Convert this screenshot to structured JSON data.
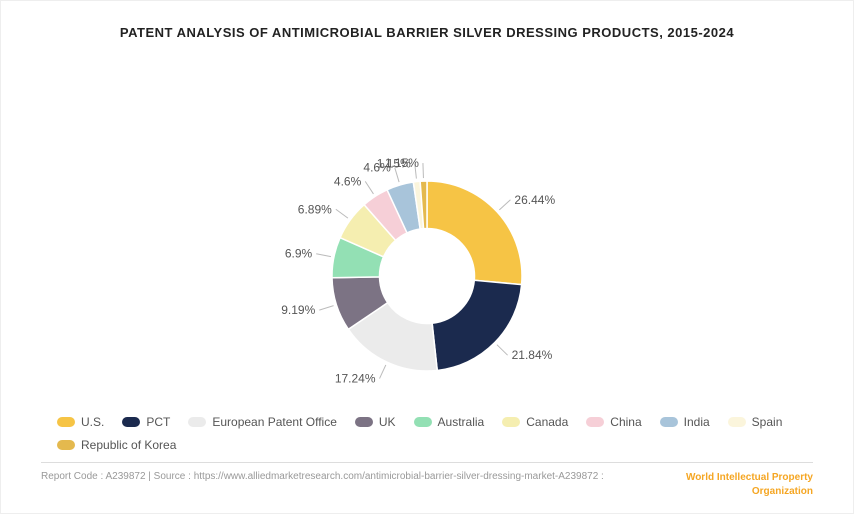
{
  "title": "PATENT ANALYSIS OF ANTIMICROBIAL BARRIER SILVER DRESSING PRODUCTS, 2015-2024",
  "title_fontsize": 13,
  "chart": {
    "type": "donut",
    "inner_radius_ratio": 0.5,
    "background_color": "#ffffff",
    "label_fontsize": 12,
    "label_color": "#555555",
    "start_angle_deg": 0,
    "slices": [
      {
        "name": "U.S.",
        "value": 26.44,
        "label": "26.44%",
        "color": "#f6c445"
      },
      {
        "name": "PCT",
        "value": 21.84,
        "label": "21.84%",
        "color": "#1b2a4e"
      },
      {
        "name": "European Patent Office",
        "value": 17.24,
        "label": "17.24%",
        "color": "#ebebeb"
      },
      {
        "name": "UK",
        "value": 9.19,
        "label": "9.19%",
        "color": "#7c7384"
      },
      {
        "name": "Australia",
        "value": 6.9,
        "label": "6.9%",
        "color": "#93e0b4"
      },
      {
        "name": "Canada",
        "value": 6.89,
        "label": "6.89%",
        "color": "#f5eeb0"
      },
      {
        "name": "China",
        "value": 4.6,
        "label": "4.6%",
        "color": "#f6cfd7"
      },
      {
        "name": "India",
        "value": 4.6,
        "label": "4.6%",
        "color": "#a8c4da"
      },
      {
        "name": "Spain",
        "value": 1.15,
        "label": "1.15%",
        "color": "#fbf5dc"
      },
      {
        "name": "Republic of Korea",
        "value": 1.15,
        "label": "1.15%",
        "color": "#e4b94e"
      }
    ]
  },
  "legend": {
    "fontsize": 12,
    "swatch_radius": 5
  },
  "footer": {
    "left_text": "Report Code : A239872  |  Source : https://www.alliedmarketresearch.com/antimicrobial-barrier-silver-dressing-market-A239872 :",
    "right_text_line1": "World Intellectual Property",
    "right_text_line2": "Organization",
    "fontsize": 10,
    "right_color": "#f5a623"
  }
}
